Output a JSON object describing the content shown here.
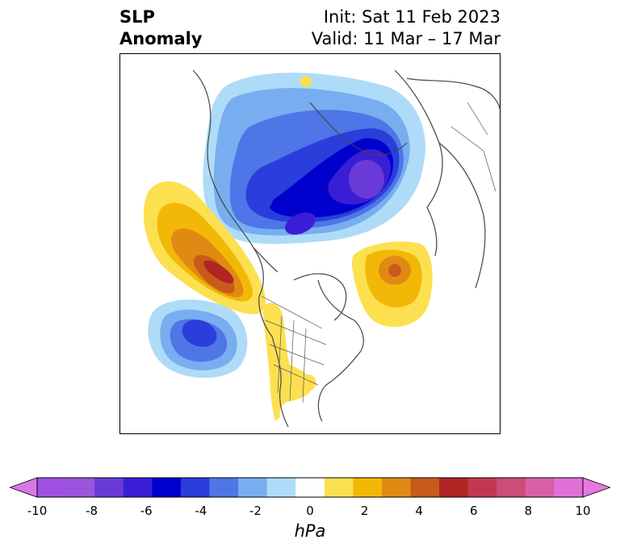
{
  "title": {
    "left_line1": "SLP",
    "left_line2": "Anomaly",
    "right_line1": "Init: Sat 11 Feb 2023",
    "right_line2": "Valid: 11 Mar – 17 Mar"
  },
  "colorbar": {
    "unit": "hPa",
    "ticks": [
      "-10",
      "-8",
      "-6",
      "-4",
      "-2",
      "0",
      "2",
      "4",
      "6",
      "8",
      "10"
    ],
    "bins": [
      {
        "range": "-10 to -9",
        "color": "#a050e0"
      },
      {
        "range": "-9 to -8",
        "color": "#9a55dc"
      },
      {
        "range": "-8 to -7",
        "color": "#6a3ad8"
      },
      {
        "range": "-7 to -6",
        "color": "#3a1ed6"
      },
      {
        "range": "-6 to -5",
        "color": "#0000cd"
      },
      {
        "range": "-5 to -4",
        "color": "#2a3edc"
      },
      {
        "range": "-4 to -3",
        "color": "#4e76e6"
      },
      {
        "range": "-3 to -2",
        "color": "#78aef0"
      },
      {
        "range": "-2 to -1",
        "color": "#aedcf8"
      },
      {
        "range": "-1 to 1",
        "color": "#ffffff"
      },
      {
        "range": "1 to 2",
        "color": "#fde050"
      },
      {
        "range": "2 to 3",
        "color": "#f2b808"
      },
      {
        "range": "3 to 4",
        "color": "#e08a14"
      },
      {
        "range": "4 to 5",
        "color": "#c85a1a"
      },
      {
        "range": "5 to 6",
        "color": "#b02424"
      },
      {
        "range": "6 to 7",
        "color": "#c23850"
      },
      {
        "range": "7 to 8",
        "color": "#cc4c7a"
      },
      {
        "range": "8 to 9",
        "color": "#d860a8"
      },
      {
        "range": "9 to 10",
        "color": "#e070d8"
      }
    ],
    "low_extend_color": "#d878e8",
    "high_extend_color": "#e878e0"
  },
  "anomaly_centers": [
    {
      "name": "arctic-low",
      "sign": "negative",
      "peak_hpa": -7
    },
    {
      "name": "northeast-pacific-high",
      "sign": "positive",
      "peak_hpa": 6
    },
    {
      "name": "north-pacific-low",
      "sign": "negative",
      "peak_hpa": -5
    },
    {
      "name": "north-atlantic-high",
      "sign": "positive",
      "peak_hpa": 4
    },
    {
      "name": "central-us-high",
      "sign": "positive",
      "peak_hpa": 1
    }
  ]
}
